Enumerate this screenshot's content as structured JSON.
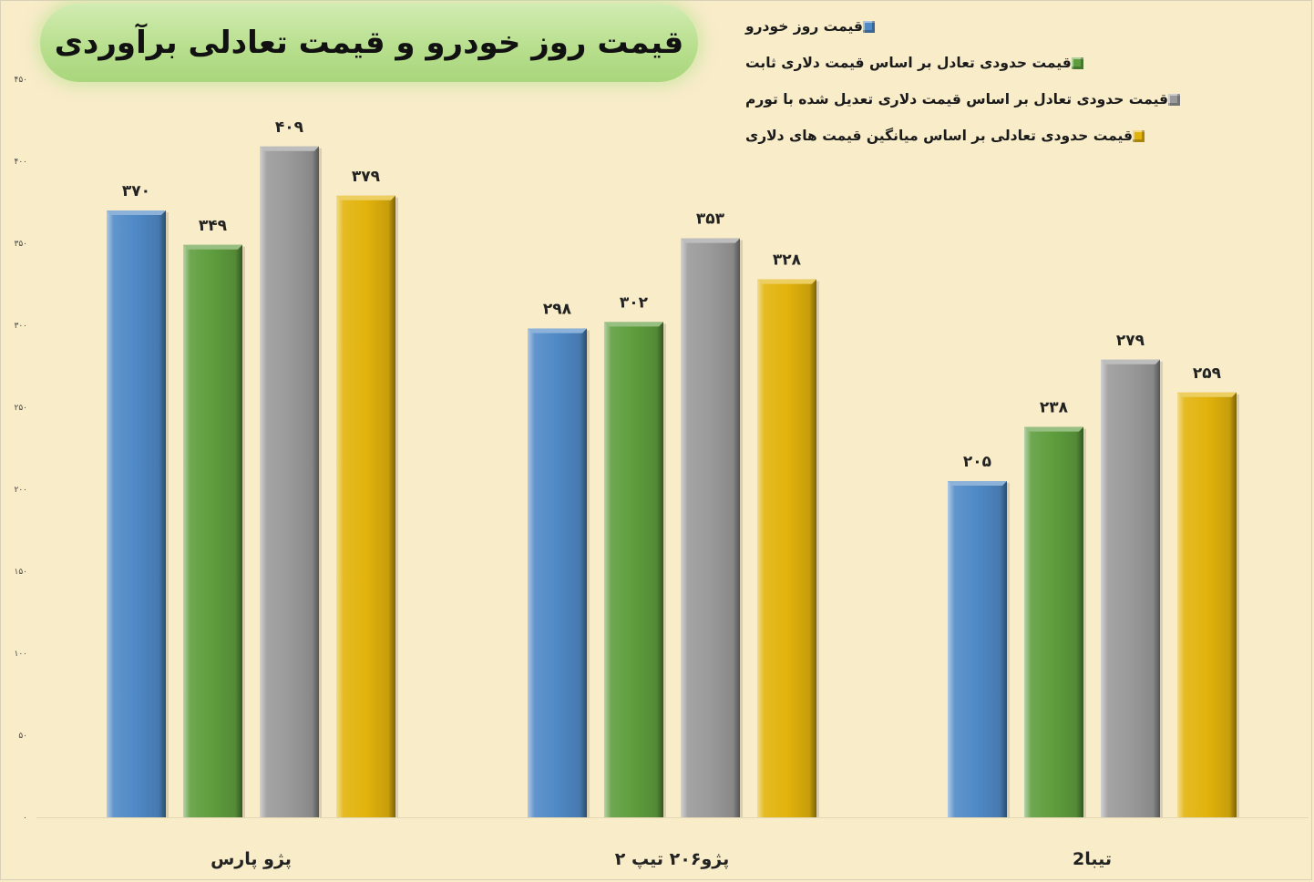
{
  "chart_data": {
    "type": "bar",
    "title": "قیمت روز خودرو و قیمت تعادلی برآوردی",
    "categories": [
      "پژو پارس",
      "پژو۲۰۶ تیپ ۲",
      "تیبا2"
    ],
    "series": [
      {
        "name": "قیمت روز خودرو",
        "color": "#4f89c6",
        "values": [
          370,
          298,
          205
        ],
        "labels": [
          "۳۷۰",
          "۲۹۸",
          "۲۰۵"
        ]
      },
      {
        "name": "قیمت حدودی تعادل بر اساس قیمت دلاری ثابت",
        "color": "#5e9d3d",
        "values": [
          349,
          302,
          238
        ],
        "labels": [
          "۳۴۹",
          "۳۰۲",
          "۲۳۸"
        ]
      },
      {
        "name": "قیمت حدودی تعادل بر اساس قیمت دلاری تعدیل شده با تورم",
        "color": "#9a9a9a",
        "values": [
          409,
          353,
          279
        ],
        "labels": [
          "۴۰۹",
          "۳۵۳",
          "۲۷۹"
        ]
      },
      {
        "name": "قیمت حدودی تعادلی بر اساس میانگین قیمت های دلاری",
        "color": "#e2b30c",
        "values": [
          379,
          328,
          259
        ],
        "labels": [
          "۳۷۹",
          "۳۲۸",
          "۲۵۹"
        ]
      }
    ],
    "ylim": [
      0,
      450
    ],
    "yticks": [
      0,
      50,
      100,
      150,
      200,
      250,
      300,
      350,
      400,
      450
    ],
    "ytick_labels": [
      "۰",
      "۵۰",
      "۱۰۰",
      "۱۵۰",
      "۲۰۰",
      "۲۵۰",
      "۳۰۰",
      "۳۵۰",
      "۴۰۰",
      "۴۵۰"
    ],
    "legend_position": "top-right",
    "grid": false
  }
}
